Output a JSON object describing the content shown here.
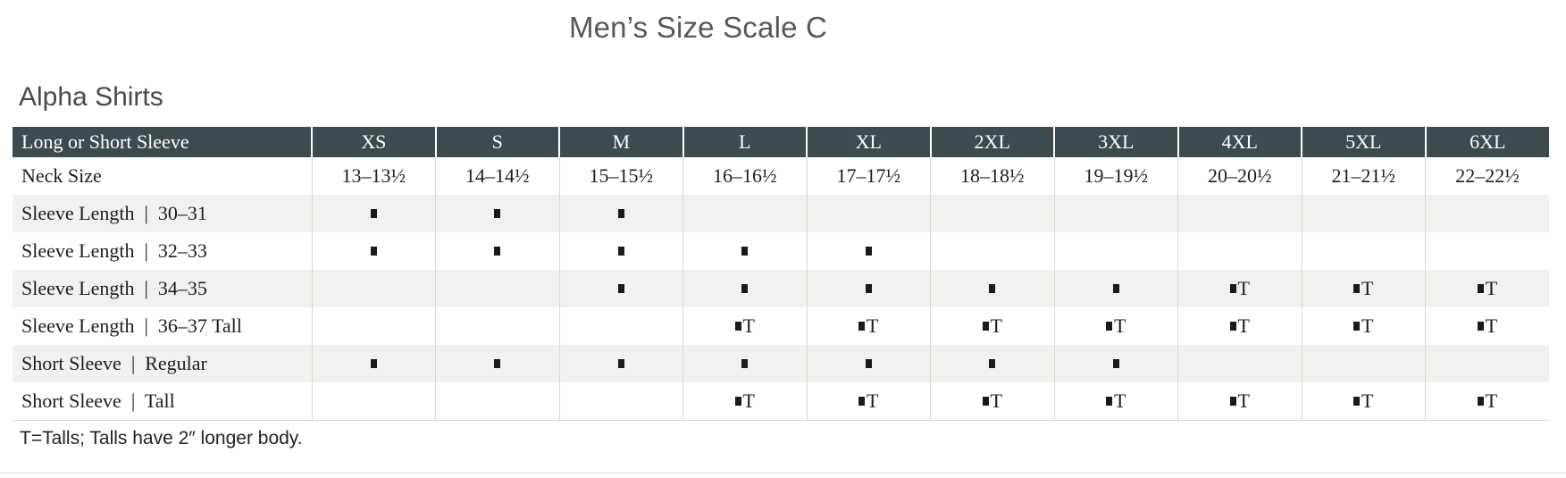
{
  "page": {
    "title": "Men’s Size Scale C",
    "section_heading": "Alpha Shirts",
    "footnote": "T=Talls; Talls have 2″ longer body."
  },
  "table": {
    "header": {
      "label": "Long or Short Sleeve",
      "sizes": [
        "XS",
        "S",
        "M",
        "L",
        "XL",
        "2XL",
        "3XL",
        "4XL",
        "5XL",
        "6XL"
      ]
    },
    "rows": [
      {
        "label": "Neck Size",
        "shaded": false,
        "cells": [
          "13–13½",
          "14–14½",
          "15–15½",
          "16–16½",
          "17–17½",
          "18–18½",
          "19–19½",
          "20–20½",
          "21–21½",
          "22–22½"
        ]
      },
      {
        "label": "Sleeve Length  |  30–31",
        "shaded": true,
        "cells": [
          "▪",
          "▪",
          "▪",
          "",
          "",
          "",
          "",
          "",
          "",
          ""
        ]
      },
      {
        "label": "Sleeve Length  |  32–33",
        "shaded": false,
        "cells": [
          "▪",
          "▪",
          "▪",
          "▪",
          "▪",
          "",
          "",
          "",
          "",
          ""
        ]
      },
      {
        "label": "Sleeve Length  |  34–35",
        "shaded": true,
        "cells": [
          "",
          "",
          "▪",
          "▪",
          "▪",
          "▪",
          "▪",
          "▪T",
          "▪T",
          "▪T"
        ]
      },
      {
        "label": "Sleeve Length  |  36–37 Tall",
        "shaded": false,
        "cells": [
          "",
          "",
          "",
          "▪T",
          "▪T",
          "▪T",
          "▪T",
          "▪T",
          "▪T",
          "▪T"
        ]
      },
      {
        "label": "Short Sleeve  |  Regular",
        "shaded": true,
        "cells": [
          "▪",
          "▪",
          "▪",
          "▪",
          "▪",
          "▪",
          "▪",
          "",
          "",
          ""
        ]
      },
      {
        "label": "Short Sleeve  |  Tall",
        "shaded": false,
        "cells": [
          "",
          "",
          "",
          "▪T",
          "▪T",
          "▪T",
          "▪T",
          "▪T",
          "▪T",
          "▪T"
        ]
      }
    ]
  },
  "colors": {
    "header_bg": "#3e4a52",
    "header_text": "#ffffff",
    "row_stripe": "#f2f1ef",
    "grid_line": "#dbd9d6",
    "title_text": "#58585b",
    "body_text": "#1d1d1d"
  }
}
